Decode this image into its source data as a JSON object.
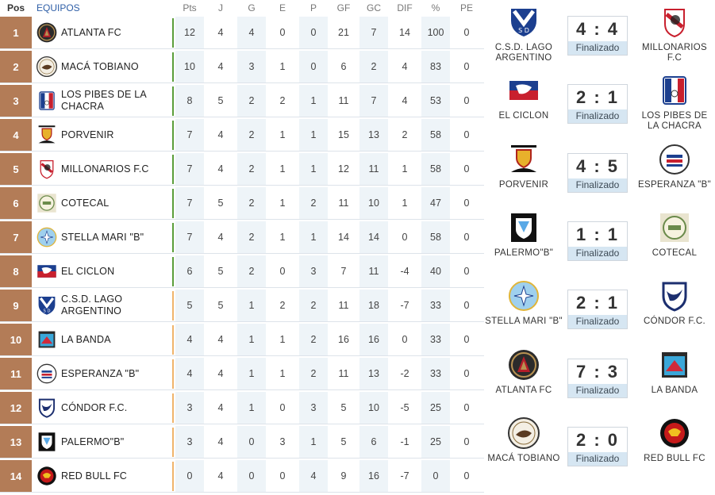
{
  "header": {
    "pos": "Pos",
    "team": "EQUIPOS",
    "stat_cols": [
      "Pts",
      "J",
      "G",
      "E",
      "P",
      "GF",
      "GC",
      "DIF",
      "%",
      "PE"
    ]
  },
  "colors": {
    "pos_bg": "#b37c57",
    "zone_green": "#5b9e3b",
    "zone_orange": "#f0b46b",
    "shade": "#eef4f8",
    "status_bg": "#d6e6f2"
  },
  "standings": [
    {
      "pos": "1",
      "team": "ATLANTA FC",
      "logo": "atlanta-logo",
      "zone": "green",
      "stats": [
        "12",
        "4",
        "4",
        "0",
        "0",
        "21",
        "7",
        "14",
        "100",
        "0"
      ]
    },
    {
      "pos": "2",
      "team": "MACÁ TOBIANO",
      "logo": "maca-logo",
      "zone": "green",
      "stats": [
        "10",
        "4",
        "3",
        "1",
        "0",
        "6",
        "2",
        "4",
        "83",
        "0"
      ]
    },
    {
      "pos": "3",
      "team": "LOS PIBES DE LA CHACRA",
      "logo": "pibes-logo",
      "zone": "green",
      "stats": [
        "8",
        "5",
        "2",
        "2",
        "1",
        "11",
        "7",
        "4",
        "53",
        "0"
      ]
    },
    {
      "pos": "4",
      "team": "PORVENIR",
      "logo": "porvenir-logo",
      "zone": "green",
      "stats": [
        "7",
        "4",
        "2",
        "1",
        "1",
        "15",
        "13",
        "2",
        "58",
        "0"
      ]
    },
    {
      "pos": "5",
      "team": "MILLONARIOS F.C",
      "logo": "millonarios-logo",
      "zone": "green",
      "stats": [
        "7",
        "4",
        "2",
        "1",
        "1",
        "12",
        "11",
        "1",
        "58",
        "0"
      ]
    },
    {
      "pos": "6",
      "team": "COTECAL",
      "logo": "cotecal-logo",
      "zone": "green",
      "stats": [
        "7",
        "5",
        "2",
        "1",
        "2",
        "11",
        "10",
        "1",
        "47",
        "0"
      ]
    },
    {
      "pos": "7",
      "team": "STELLA MARI \"B\"",
      "logo": "stella-logo",
      "zone": "green",
      "stats": [
        "7",
        "4",
        "2",
        "1",
        "1",
        "14",
        "14",
        "0",
        "58",
        "0"
      ]
    },
    {
      "pos": "8",
      "team": "EL CICLON",
      "logo": "ciclon-logo",
      "zone": "green",
      "stats": [
        "6",
        "5",
        "2",
        "0",
        "3",
        "7",
        "11",
        "-4",
        "40",
        "0"
      ]
    },
    {
      "pos": "9",
      "team": "C.S.D. LAGO ARGENTINO",
      "logo": "lago-logo",
      "zone": "orange",
      "stats": [
        "5",
        "5",
        "1",
        "2",
        "2",
        "11",
        "18",
        "-7",
        "33",
        "0"
      ]
    },
    {
      "pos": "10",
      "team": "LA BANDA",
      "logo": "banda-logo",
      "zone": "orange",
      "stats": [
        "4",
        "4",
        "1",
        "1",
        "2",
        "16",
        "16",
        "0",
        "33",
        "0"
      ]
    },
    {
      "pos": "11",
      "team": "ESPERANZA  \"B\"",
      "logo": "esperanza-logo",
      "zone": "orange",
      "stats": [
        "4",
        "4",
        "1",
        "1",
        "2",
        "11",
        "13",
        "-2",
        "33",
        "0"
      ]
    },
    {
      "pos": "12",
      "team": "CÓNDOR F.C.",
      "logo": "condor-logo",
      "zone": "orange",
      "stats": [
        "3",
        "4",
        "1",
        "0",
        "3",
        "5",
        "10",
        "-5",
        "25",
        "0"
      ]
    },
    {
      "pos": "13",
      "team": "PALERMO\"B\"",
      "logo": "palermo-logo",
      "zone": "orange",
      "stats": [
        "3",
        "4",
        "0",
        "3",
        "1",
        "5",
        "6",
        "-1",
        "25",
        "0"
      ]
    },
    {
      "pos": "14",
      "team": "RED BULL FC",
      "logo": "redbull-logo",
      "zone": "orange",
      "stats": [
        "0",
        "4",
        "0",
        "0",
        "4",
        "9",
        "16",
        "-7",
        "0",
        "0"
      ]
    }
  ],
  "results": [
    {
      "home": "C.S.D. LAGO ARGENTINO",
      "home_logo": "lago-logo",
      "score": "4 : 4",
      "status": "Finalizado",
      "away": "MILLONARIOS F.C",
      "away_logo": "millonarios-logo"
    },
    {
      "home": "EL CICLON",
      "home_logo": "ciclon-logo",
      "score": "2 : 1",
      "status": "Finalizado",
      "away": "LOS PIBES DE LA CHACRA",
      "away_logo": "pibes-logo"
    },
    {
      "home": "PORVENIR",
      "home_logo": "porvenir-logo",
      "score": "4 : 5",
      "status": "Finalizado",
      "away": "ESPERANZA \"B\"",
      "away_logo": "esperanza-logo"
    },
    {
      "home": "PALERMO\"B\"",
      "home_logo": "palermo-logo",
      "score": "1 : 1",
      "status": "Finalizado",
      "away": "COTECAL",
      "away_logo": "cotecal-logo"
    },
    {
      "home": "STELLA MARI \"B\"",
      "home_logo": "stella-logo",
      "score": "2 : 1",
      "status": "Finalizado",
      "away": "CÓNDOR F.C.",
      "away_logo": "condor-logo"
    },
    {
      "home": "ATLANTA FC",
      "home_logo": "atlanta-logo",
      "score": "7 : 3",
      "status": "Finalizado",
      "away": "LA BANDA",
      "away_logo": "banda-logo"
    },
    {
      "home": "MACÁ TOBIANO",
      "home_logo": "maca-logo",
      "score": "2 : 0",
      "status": "Finalizado",
      "away": "RED BULL FC",
      "away_logo": "redbull-logo"
    }
  ]
}
